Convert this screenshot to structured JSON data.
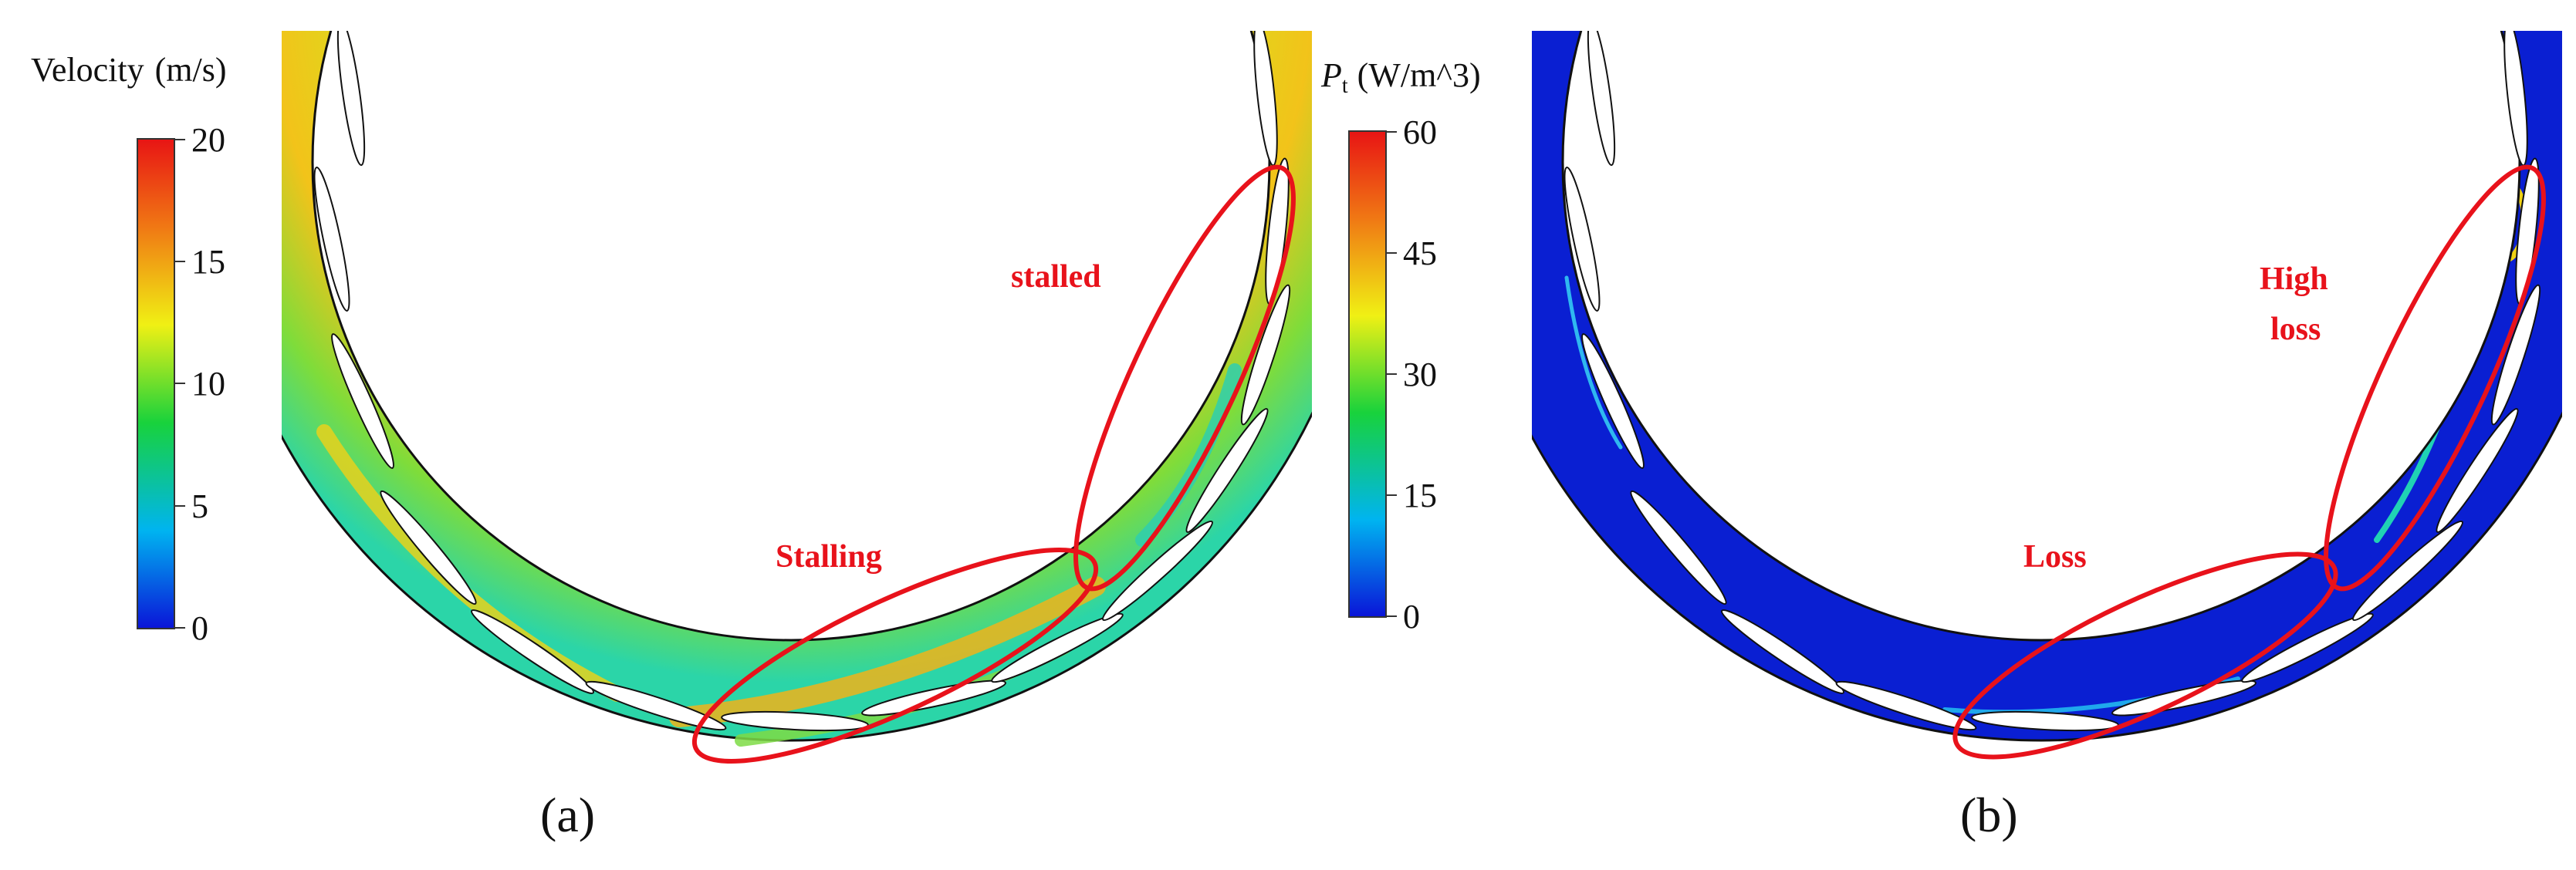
{
  "panels": [
    {
      "id": "a",
      "label": "(a)",
      "colorbar": {
        "title_prefix": "Velocity",
        "title_units": "(m/s)",
        "ticks": [
          "20",
          "15",
          "10",
          "5",
          "0"
        ]
      },
      "annotations": [
        "stalled",
        "Stalling"
      ]
    },
    {
      "id": "b",
      "label": "(b)",
      "colorbar": {
        "title_symbol": "P",
        "title_subscript": "t",
        "title_units": "(W/m^3)",
        "ticks": [
          "60",
          "45",
          "30",
          "15",
          "0"
        ]
      },
      "annotations": [
        "High",
        "loss",
        "Loss"
      ]
    }
  ],
  "colors": {
    "highlight": "#e8121b",
    "colormap": [
      "#0a14d8",
      "#00b4f0",
      "#18d23c",
      "#f0f014",
      "#f07814",
      "#e81414"
    ]
  }
}
